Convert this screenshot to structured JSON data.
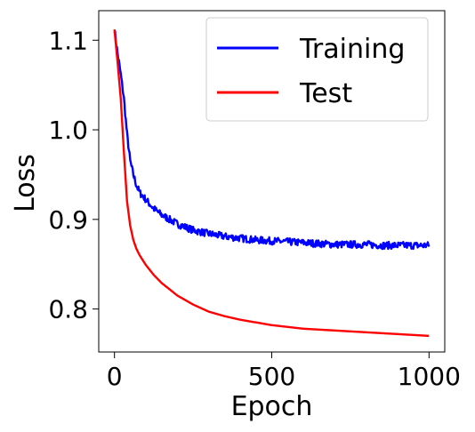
{
  "chart_data": {
    "type": "line",
    "title": "",
    "xlabel": "Epoch",
    "ylabel": "Loss",
    "xlim": [
      -50,
      1050
    ],
    "ylim": [
      0.752,
      1.133
    ],
    "xticks": [
      0,
      500,
      1000
    ],
    "xtick_labels": [
      "0",
      "500",
      "1000"
    ],
    "yticks": [
      0.8,
      0.9,
      1.0,
      1.1
    ],
    "ytick_labels": [
      "0.8",
      "0.9",
      "1.0",
      "1.1"
    ],
    "grid": false,
    "legend": {
      "position": "top-right",
      "entries": [
        "Training",
        "Test"
      ]
    },
    "series": [
      {
        "name": "Training",
        "color": "#0000ff",
        "noisy": true,
        "x": [
          0,
          10,
          20,
          30,
          40,
          50,
          60,
          70,
          80,
          100,
          125,
          150,
          175,
          200,
          250,
          300,
          350,
          400,
          450,
          500,
          550,
          600,
          650,
          700,
          750,
          800,
          850,
          900,
          950,
          1000
        ],
        "y": [
          1.112,
          1.085,
          1.062,
          1.035,
          0.995,
          0.965,
          0.95,
          0.938,
          0.93,
          0.922,
          0.912,
          0.905,
          0.9,
          0.895,
          0.888,
          0.884,
          0.881,
          0.879,
          0.877,
          0.876,
          0.875,
          0.874,
          0.873,
          0.872,
          0.872,
          0.872,
          0.871,
          0.871,
          0.871,
          0.871
        ]
      },
      {
        "name": "Test",
        "color": "#ff0000",
        "noisy": false,
        "x": [
          0,
          10,
          20,
          30,
          40,
          50,
          60,
          70,
          80,
          100,
          125,
          150,
          175,
          200,
          250,
          300,
          350,
          400,
          450,
          500,
          550,
          600,
          650,
          700,
          750,
          800,
          850,
          900,
          950,
          1000
        ],
        "y": [
          1.112,
          1.075,
          1.035,
          0.975,
          0.92,
          0.893,
          0.877,
          0.867,
          0.86,
          0.849,
          0.838,
          0.829,
          0.822,
          0.815,
          0.805,
          0.797,
          0.792,
          0.788,
          0.785,
          0.782,
          0.78,
          0.778,
          0.777,
          0.776,
          0.775,
          0.774,
          0.773,
          0.772,
          0.771,
          0.77
        ]
      }
    ]
  }
}
